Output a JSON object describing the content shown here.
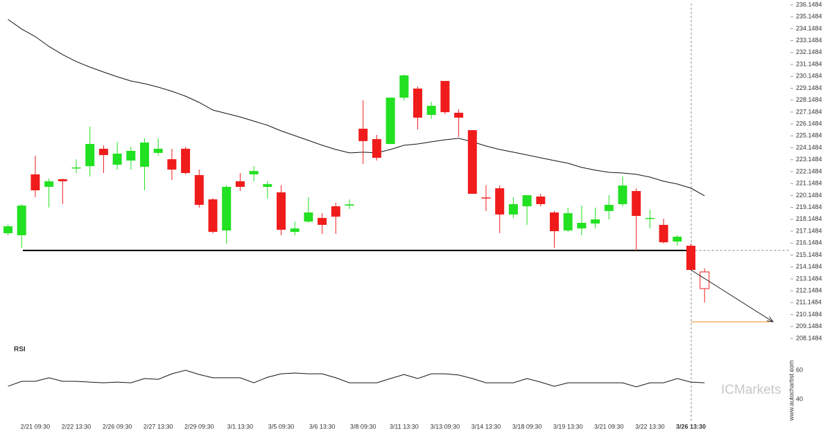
{
  "chart_data": {
    "type": "candlestick",
    "categories": [
      null,
      null,
      "2/21 09:30",
      null,
      null,
      "2/22 13:30",
      null,
      null,
      "2/26 09:30",
      null,
      null,
      "2/27 13:30",
      null,
      null,
      "2/29 09:30",
      null,
      null,
      "3/1 13:30",
      null,
      null,
      "3/5 09:30",
      null,
      null,
      "3/6 13:30",
      null,
      null,
      "3/8 09:30",
      null,
      null,
      "3/11 13:30",
      null,
      null,
      "3/13 09:30",
      null,
      null,
      "3/14 13:30",
      null,
      null,
      "3/18 09:30",
      null,
      null,
      "3/19 13:30",
      null,
      null,
      "3/21 09:30",
      null,
      null,
      "3/22 13:30",
      null,
      null,
      "3/26 13:30",
      null
    ],
    "open": [
      216.98,
      216.81,
      221.92,
      220.87,
      221.51,
      222.42,
      222.61,
      224.07,
      222.73,
      223.08,
      222.56,
      223.72,
      223.19,
      224.07,
      221.86,
      219.82,
      217.21,
      221.34,
      221.92,
      220.87,
      220.41,
      217.09,
      217.96,
      218.26,
      219.24,
      219.3,
      225.75,
      224.88,
      224.47,
      228.36,
      229.12,
      226.91,
      229.76,
      227.09,
      225.63,
      219.98,
      220.75,
      218.55,
      219.24,
      220.06,
      218.72,
      217.21,
      217.38,
      217.79,
      218.84,
      219.42,
      220.52,
      218.2,
      217.68,
      216.28,
      215.93,
      213.73
    ],
    "high": [
      217.7,
      219.42,
      223.48,
      221.57,
      221.57,
      223.19,
      225.92,
      224.36,
      224.65,
      224.24,
      224.94,
      224.94,
      224.07,
      224.24,
      222.32,
      219.94,
      221.0,
      222.03,
      222.61,
      221.34,
      221.0,
      217.96,
      220.0,
      218.66,
      219.53,
      219.82,
      228.13,
      225.23,
      228.36,
      230.28,
      229.29,
      228.01,
      229.76,
      227.38,
      225.63,
      221.0,
      221.0,
      220.0,
      220.17,
      220.29,
      218.84,
      219.13,
      219.3,
      219.13,
      220.17,
      221.74,
      220.75,
      218.95,
      218.2,
      216.81,
      216.11,
      214.02
    ],
    "low": [
      216.8,
      215.76,
      220.0,
      219.13,
      219.42,
      222.03,
      221.74,
      222.03,
      222.32,
      222.32,
      220.58,
      223.48,
      221.45,
      221.92,
      219.13,
      216.98,
      216.11,
      220.52,
      221.34,
      219.88,
      216.81,
      216.81,
      217.85,
      216.92,
      216.92,
      219.0,
      222.79,
      223.08,
      224.47,
      228.13,
      225.69,
      226.57,
      226.97,
      225.06,
      220.29,
      218.84,
      216.98,
      218.26,
      217.68,
      219.24,
      215.76,
      217.09,
      216.81,
      217.38,
      218.14,
      219.24,
      215.53,
      217.38,
      216.11,
      215.93,
      213.9,
      211.17
    ],
    "close": [
      217.56,
      219.3,
      220.58,
      221.34,
      221.34,
      222.5,
      224.47,
      223.54,
      223.66,
      223.89,
      224.59,
      224.07,
      222.32,
      222.03,
      219.36,
      217.09,
      220.87,
      220.87,
      222.2,
      221.1,
      217.27,
      217.38,
      218.72,
      217.68,
      218.37,
      219.4,
      224.71,
      223.31,
      228.36,
      230.23,
      226.68,
      227.67,
      227.14,
      226.68,
      220.29,
      219.93,
      218.55,
      219.42,
      220.17,
      219.42,
      217.15,
      218.66,
      217.85,
      218.14,
      219.36,
      220.98,
      218.43,
      218.26,
      216.22,
      216.69,
      213.9,
      212.33
    ],
    "up_color": "#22e022",
    "down_color": "#f01c1c",
    "ma": {
      "color": "#111111",
      "values": [
        234.93,
        234.12,
        233.48,
        232.66,
        231.97,
        231.39,
        230.92,
        230.51,
        230.11,
        229.76,
        229.53,
        229.24,
        228.89,
        228.48,
        227.96,
        227.32,
        227.03,
        226.74,
        226.39,
        226.04,
        225.57,
        225.17,
        224.77,
        224.36,
        224.01,
        223.72,
        223.78,
        223.72,
        224.01,
        224.36,
        224.47,
        224.65,
        224.82,
        224.94,
        224.65,
        224.3,
        224.01,
        223.78,
        223.55,
        223.31,
        223.08,
        222.85,
        222.5,
        222.27,
        222.09,
        222.03,
        221.92,
        221.69,
        221.34,
        221.11,
        220.76,
        220.12
      ]
    },
    "support": 215.53,
    "target": 209.54,
    "target_color": "#f08a24",
    "ylim": [
      207.8,
      236.555
    ],
    "yticks": [
      208.1484,
      209.1484,
      210.1484,
      211.1484,
      212.1484,
      213.1484,
      214.1484,
      215.1484,
      216.1484,
      217.1484,
      218.1484,
      219.1484,
      220.1484,
      221.1484,
      222.1484,
      223.1484,
      224.1484,
      225.1484,
      226.1484,
      227.1484,
      228.1484,
      229.1484,
      230.1484,
      231.1484,
      232.1484,
      233.1484,
      234.1484,
      235.1484,
      236.1484
    ],
    "rsi": {
      "label": "RSI",
      "color": "#111111",
      "values": [
        49.0,
        52.4,
        52.4,
        54.8,
        52.4,
        52.4,
        51.9,
        51.4,
        51.9,
        51.4,
        54.3,
        53.8,
        57.6,
        60.0,
        57.1,
        54.8,
        54.8,
        54.8,
        51.4,
        55.2,
        57.6,
        58.1,
        57.6,
        57.6,
        54.8,
        51.4,
        51.4,
        51.4,
        54.3,
        57.1,
        54.3,
        57.6,
        57.6,
        56.7,
        54.3,
        51.4,
        51.4,
        51.4,
        54.3,
        51.9,
        49.0,
        51.4,
        51.4,
        51.4,
        51.4,
        51.4,
        48.6,
        51.4,
        51.4,
        54.3,
        51.9,
        51.4
      ],
      "ylim": [
        22,
        79
      ],
      "yticks": [
        40,
        60
      ]
    },
    "watermark": "www.autochartist.com",
    "logo": "ICMarkets"
  }
}
